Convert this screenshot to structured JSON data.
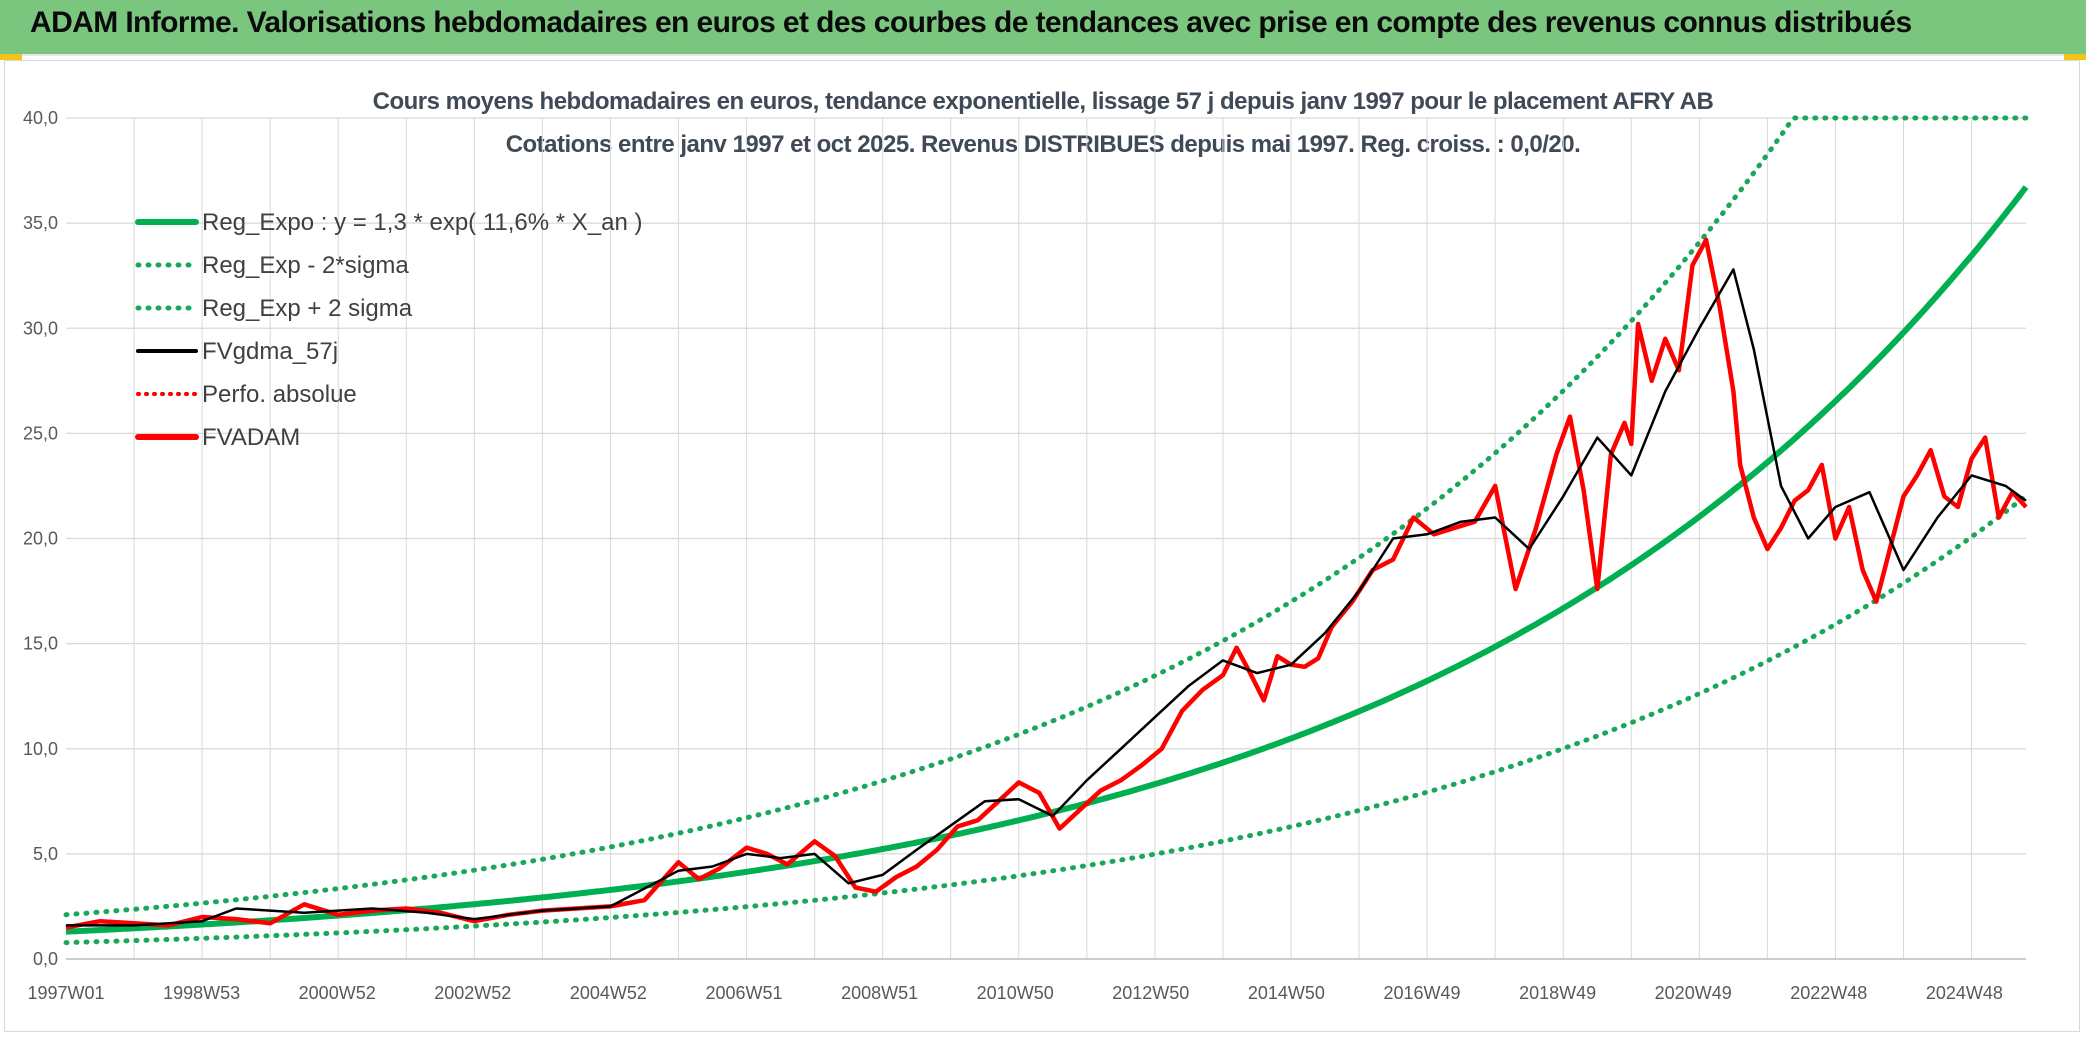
{
  "header": {
    "title": "ADAM Informe. Valorisations hebdomadaires en euros et des courbes de tendances avec prise en compte des revenus connus distribués"
  },
  "colors": {
    "header_bg": "#7ac67e",
    "trend_green": "#00b050",
    "band_green": "#19a85a",
    "smooth_black": "#000000",
    "price_red": "#ff0000",
    "grid": "#d9d9d9",
    "accent_yellow": "#f2c419"
  },
  "chart_data": {
    "type": "line",
    "title": "Cours moyens hebdomadaires en euros, tendance exponentielle, lissage 57 j depuis janv 1997 pour le placement AFRY AB",
    "subtitle": "Cotations entre janv 1997 et oct 2025. Revenus DISTRIBUES depuis mai 1997. Reg. croiss. : 0,0/20.",
    "xlabel": "",
    "ylabel": "",
    "ylim": [
      0,
      40
    ],
    "y_ticks": [
      "0,0",
      "5,0",
      "10,0",
      "15,0",
      "20,0",
      "25,0",
      "30,0",
      "35,0",
      "40,0"
    ],
    "x_ticks": [
      "1997W01",
      "1998W53",
      "2000W52",
      "2002W52",
      "2004W52",
      "2006W51",
      "2008W51",
      "2010W50",
      "2012W50",
      "2014W50",
      "2016W49",
      "2018W49",
      "2020W49",
      "2022W48",
      "2024W48"
    ],
    "x_range_years": [
      1997.0,
      2025.8
    ],
    "grid": true,
    "legend_position": "top-left",
    "regression": {
      "name": "Reg_Expo : y = 1,3 * exp( 11,6% *  X_an )",
      "a": 1.3,
      "growth_rate": 0.116,
      "band_factor_upper": 1.62,
      "band_factor_lower": 0.6,
      "cap": 40
    },
    "series": [
      {
        "name": "Reg_Expo : y = 1,3 * exp( 11,6% *  X_an )",
        "style": "solid-green",
        "kind": "regression"
      },
      {
        "name": "Reg_Exp - 2*sigma",
        "style": "dotted-green",
        "kind": "lower-band"
      },
      {
        "name": "Reg_Exp + 2 sigma",
        "style": "dotted-green",
        "kind": "upper-band"
      },
      {
        "name": "FVgdma_57j",
        "style": "solid-black",
        "kind": "smoothed",
        "x": [
          1997.0,
          1998.0,
          1999.0,
          1999.5,
          2000.5,
          2001.5,
          2002.3,
          2003.0,
          2004.0,
          2005.0,
          2006.0,
          2006.5,
          2007.0,
          2007.5,
          2008.0,
          2008.5,
          2009.0,
          2009.5,
          2010.5,
          2011.0,
          2011.5,
          2012.0,
          2012.5,
          2013.0,
          2013.5,
          2014.0,
          2014.5,
          2015.0,
          2015.5,
          2016.0,
          2016.5,
          2017.0,
          2017.5,
          2018.0,
          2018.5,
          2019.0,
          2019.5,
          2020.0,
          2020.5,
          2021.0,
          2021.5,
          2021.8,
          2022.2,
          2022.6,
          2023.0,
          2023.5,
          2024.0,
          2024.5,
          2025.0,
          2025.5,
          2025.8
        ],
        "y": [
          1.6,
          1.6,
          1.8,
          2.4,
          2.2,
          2.4,
          2.2,
          1.9,
          2.3,
          2.5,
          4.2,
          4.4,
          5.0,
          4.8,
          5.0,
          3.6,
          4.0,
          5.2,
          7.5,
          7.6,
          6.8,
          8.5,
          10.0,
          11.5,
          13.0,
          14.2,
          13.6,
          14.0,
          15.5,
          17.5,
          20.0,
          20.2,
          20.8,
          21.0,
          19.5,
          22.0,
          24.8,
          23.0,
          27.0,
          30.0,
          32.8,
          29.0,
          22.5,
          20.0,
          21.5,
          22.2,
          18.5,
          21.0,
          23.0,
          22.5,
          21.8
        ]
      },
      {
        "name": "Perfo. absolue",
        "style": "dotted-red",
        "kind": "absolute",
        "x": [],
        "y": []
      },
      {
        "name": "FVADAM",
        "style": "solid-red",
        "kind": "price",
        "x": [
          1997.0,
          1997.5,
          1998.0,
          1998.5,
          1999.0,
          1999.5,
          2000.0,
          2000.5,
          2001.0,
          2001.5,
          2002.0,
          2002.5,
          2003.0,
          2003.5,
          2004.0,
          2004.5,
          2005.0,
          2005.5,
          2006.0,
          2006.3,
          2006.6,
          2007.0,
          2007.3,
          2007.6,
          2008.0,
          2008.3,
          2008.6,
          2008.9,
          2009.2,
          2009.5,
          2009.8,
          2010.1,
          2010.4,
          2010.7,
          2011.0,
          2011.3,
          2011.6,
          2011.9,
          2012.2,
          2012.5,
          2012.8,
          2013.1,
          2013.4,
          2013.7,
          2014.0,
          2014.2,
          2014.4,
          2014.6,
          2014.8,
          2015.0,
          2015.2,
          2015.4,
          2015.6,
          2015.9,
          2016.2,
          2016.5,
          2016.8,
          2017.1,
          2017.4,
          2017.7,
          2018.0,
          2018.3,
          2018.6,
          2018.9,
          2019.1,
          2019.3,
          2019.5,
          2019.7,
          2019.9,
          2020.0,
          2020.1,
          2020.3,
          2020.5,
          2020.7,
          2020.9,
          2021.1,
          2021.3,
          2021.5,
          2021.6,
          2021.8,
          2022.0,
          2022.2,
          2022.4,
          2022.6,
          2022.8,
          2023.0,
          2023.2,
          2023.4,
          2023.6,
          2023.8,
          2024.0,
          2024.2,
          2024.4,
          2024.6,
          2024.8,
          2025.0,
          2025.2,
          2025.4,
          2025.6,
          2025.8
        ],
        "y": [
          1.5,
          1.8,
          1.7,
          1.6,
          2.0,
          1.9,
          1.7,
          2.6,
          2.1,
          2.3,
          2.4,
          2.2,
          1.8,
          2.1,
          2.3,
          2.4,
          2.5,
          2.8,
          4.6,
          3.8,
          4.3,
          5.3,
          5.0,
          4.5,
          5.6,
          4.9,
          3.4,
          3.2,
          3.9,
          4.4,
          5.2,
          6.3,
          6.6,
          7.5,
          8.4,
          7.9,
          6.2,
          7.1,
          8.0,
          8.5,
          9.2,
          10.0,
          11.8,
          12.8,
          13.5,
          14.8,
          13.6,
          12.3,
          14.4,
          14.0,
          13.9,
          14.3,
          15.8,
          17.0,
          18.5,
          19.0,
          21.0,
          20.2,
          20.5,
          20.8,
          22.5,
          17.6,
          20.5,
          24.0,
          25.8,
          22.3,
          17.6,
          24.0,
          25.5,
          24.5,
          30.2,
          27.5,
          29.5,
          28.0,
          33.0,
          34.2,
          31.0,
          27.0,
          23.5,
          21.0,
          19.5,
          20.5,
          21.8,
          22.3,
          23.5,
          20.0,
          21.5,
          18.5,
          17.0,
          19.5,
          22.0,
          23.0,
          24.2,
          22.0,
          21.5,
          23.8,
          24.8,
          21.0,
          22.2,
          21.5
        ]
      }
    ]
  }
}
